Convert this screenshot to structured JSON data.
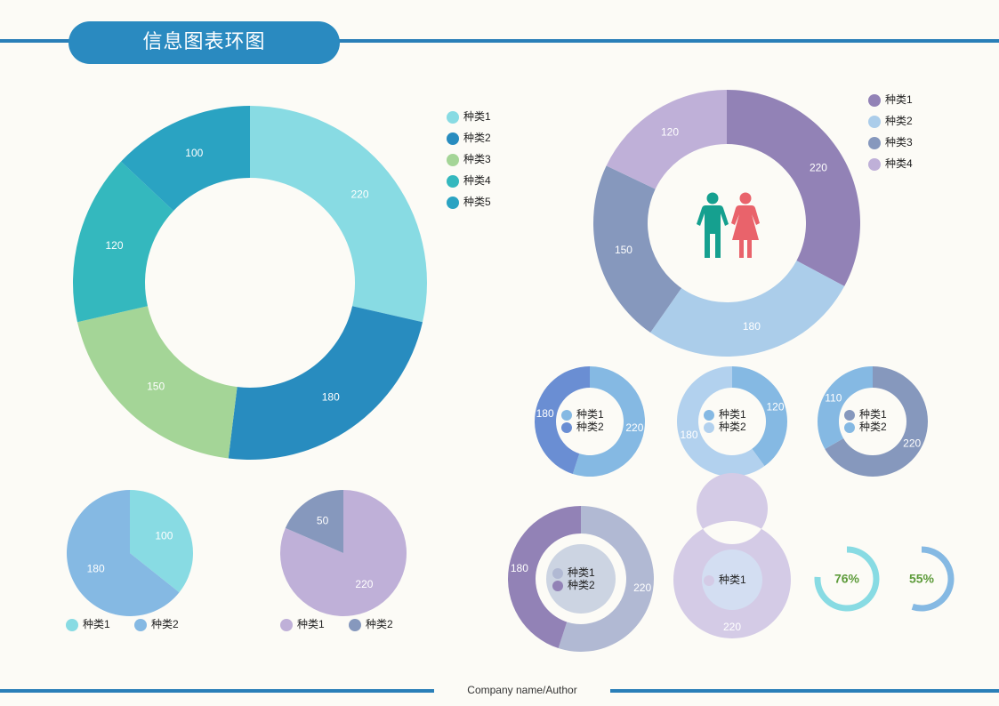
{
  "header": {
    "title": "信息图表环图"
  },
  "footer": {
    "text": "Company name/Author"
  },
  "colors": {
    "brand": "#2a8ac0",
    "text": "#222222",
    "label": "#ffffff",
    "percent_text": "#5d9b3a",
    "male_icon": "#15a08f",
    "female_icon": "#e9636b"
  },
  "icons": [
    "male-figure-icon",
    "female-figure-icon"
  ],
  "chart_data": [
    {
      "id": "donut-main",
      "type": "donut",
      "categories": [
        "种类1",
        "种类2",
        "种类3",
        "种类4",
        "种类5"
      ],
      "values": [
        220,
        180,
        150,
        120,
        100
      ],
      "labels": [
        "220",
        "180",
        "150",
        "120",
        "100"
      ],
      "colors": [
        "#88dbe3",
        "#288cbf",
        "#a4d597",
        "#34b8be",
        "#2aa3c2"
      ],
      "legend": "right"
    },
    {
      "id": "donut-people",
      "type": "donut",
      "categories": [
        "种类1",
        "种类2",
        "种类3",
        "种类4"
      ],
      "values": [
        220,
        180,
        150,
        120
      ],
      "labels": [
        "220",
        "180",
        "150",
        "120"
      ],
      "colors": [
        "#9282b6",
        "#abcdea",
        "#8698bd",
        "#bfb0d8"
      ],
      "legend": "right"
    },
    {
      "id": "donut-small-1",
      "type": "donut",
      "categories": [
        "种类1",
        "种类2"
      ],
      "values": [
        220,
        180
      ],
      "labels": [
        "220",
        "180"
      ],
      "colors": [
        "#85b9e3",
        "#6a8ed3"
      ],
      "legend": "center"
    },
    {
      "id": "donut-small-2",
      "type": "donut",
      "categories": [
        "种类1",
        "种类2"
      ],
      "values": [
        120,
        180
      ],
      "labels": [
        "120",
        "180"
      ],
      "colors": [
        "#85b9e3",
        "#b2d1ee"
      ],
      "legend": "center"
    },
    {
      "id": "donut-small-3",
      "type": "donut",
      "categories": [
        "种类1",
        "种类2"
      ],
      "values": [
        220,
        110
      ],
      "labels": [
        "220",
        "110"
      ],
      "colors": [
        "#8698bd",
        "#85b9e3"
      ],
      "legend": "center"
    },
    {
      "id": "pie-1",
      "type": "pie",
      "categories": [
        "种类1",
        "种类2"
      ],
      "values": [
        100,
        180
      ],
      "labels": [
        "100",
        "180"
      ],
      "colors": [
        "#88dbe3",
        "#85b9e3"
      ],
      "legend": "bottom"
    },
    {
      "id": "pie-2",
      "type": "pie",
      "categories": [
        "种类1",
        "种类2"
      ],
      "values": [
        220,
        50
      ],
      "labels": [
        "220",
        "50"
      ],
      "colors": [
        "#bfb0d8",
        "#8698bd"
      ],
      "legend": "bottom"
    },
    {
      "id": "donut-inner-1",
      "type": "donut",
      "categories": [
        "种类1",
        "种类2"
      ],
      "values": [
        220,
        180
      ],
      "labels": [
        "220",
        "180"
      ],
      "colors": [
        "#b1b9d3",
        "#9282b6"
      ],
      "legend": "center"
    },
    {
      "id": "donut-inner-2",
      "type": "donut",
      "categories": [
        "种类1"
      ],
      "values": [
        220
      ],
      "labels": [
        "220"
      ],
      "colors": [
        "#d4cbe6"
      ],
      "legend": "center"
    },
    {
      "id": "gauge-1",
      "type": "progress-ring",
      "label": "76%",
      "value": 76,
      "color": "#88dbe3"
    },
    {
      "id": "gauge-2",
      "type": "progress-ring",
      "label": "55%",
      "value": 55,
      "color": "#85b9e3"
    }
  ]
}
